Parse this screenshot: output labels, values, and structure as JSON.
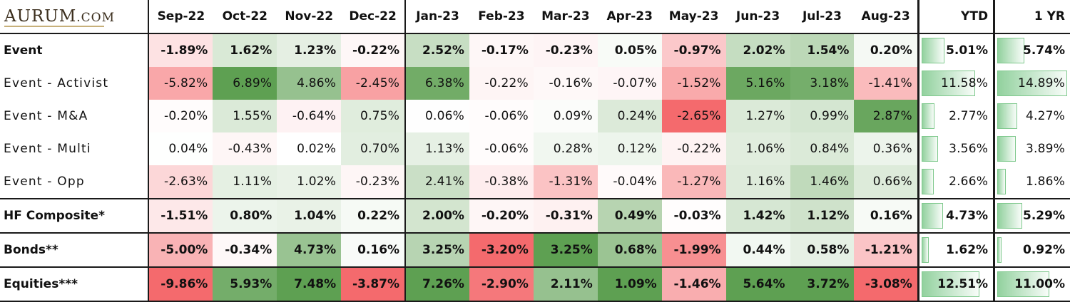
{
  "logo": {
    "text": "AURUM",
    "suffix": ".COM"
  },
  "headers": {
    "months": [
      "Sep-22",
      "Oct-22",
      "Nov-22",
      "Dec-22",
      "Jan-23",
      "Feb-23",
      "Mar-23",
      "Apr-23",
      "May-23",
      "Jun-23",
      "Jul-23",
      "Aug-23"
    ],
    "ytd": "YTD",
    "one_year": "1 YR"
  },
  "bar_max": 15,
  "colors": {
    "green_max": "#5ea052",
    "white": "#ffffff",
    "red_max": "#f46a6d",
    "bar": "#7fc98d"
  },
  "rows": [
    {
      "label": "Event",
      "bold": true,
      "sepTop": false,
      "values": [
        "-1.89%",
        "1.62%",
        "1.23%",
        "-0.22%",
        "2.52%",
        "-0.17%",
        "-0.23%",
        "0.05%",
        "-0.97%",
        "2.02%",
        "1.54%",
        "0.20%"
      ],
      "ytd": "5.01%",
      "one_year": "5.74%"
    },
    {
      "label": "Event - Activist",
      "bold": false,
      "sepTop": false,
      "values": [
        "-5.82%",
        "6.89%",
        "4.86%",
        "-2.45%",
        "6.38%",
        "-0.22%",
        "-0.16%",
        "-0.07%",
        "-1.52%",
        "5.16%",
        "3.18%",
        "-1.41%"
      ],
      "ytd": "11.58%",
      "one_year": "14.89%"
    },
    {
      "label": "Event - M&A",
      "bold": false,
      "sepTop": false,
      "values": [
        "-0.20%",
        "1.55%",
        "-0.64%",
        "0.75%",
        "0.06%",
        "-0.06%",
        "0.09%",
        "0.24%",
        "-2.65%",
        "1.27%",
        "0.99%",
        "2.87%"
      ],
      "ytd": "2.77%",
      "one_year": "4.27%"
    },
    {
      "label": "Event - Multi",
      "bold": false,
      "sepTop": false,
      "values": [
        "0.04%",
        "-0.43%",
        "0.02%",
        "0.70%",
        "1.13%",
        "-0.06%",
        "0.28%",
        "0.12%",
        "-0.22%",
        "1.06%",
        "0.84%",
        "0.36%"
      ],
      "ytd": "3.56%",
      "one_year": "3.89%"
    },
    {
      "label": "Event - Opp",
      "bold": false,
      "sepTop": false,
      "values": [
        "-2.63%",
        "1.11%",
        "1.02%",
        "-0.23%",
        "2.41%",
        "-0.38%",
        "-1.31%",
        "-0.04%",
        "-1.27%",
        "1.16%",
        "1.46%",
        "0.66%"
      ],
      "ytd": "2.66%",
      "one_year": "1.86%"
    },
    {
      "label": "HF Composite*",
      "bold": true,
      "sepTop": true,
      "values": [
        "-1.51%",
        "0.80%",
        "1.04%",
        "0.22%",
        "2.00%",
        "-0.20%",
        "-0.31%",
        "0.49%",
        "-0.03%",
        "1.42%",
        "1.12%",
        "0.16%"
      ],
      "ytd": "4.73%",
      "one_year": "5.29%"
    },
    {
      "label": "Bonds**",
      "bold": true,
      "sepTop": true,
      "values": [
        "-5.00%",
        "-0.34%",
        "4.73%",
        "0.16%",
        "3.25%",
        "-3.20%",
        "3.25%",
        "0.68%",
        "-1.99%",
        "0.44%",
        "0.58%",
        "-1.21%"
      ],
      "ytd": "1.62%",
      "one_year": "0.92%"
    },
    {
      "label": "Equities***",
      "bold": true,
      "sepTop": true,
      "values": [
        "-9.86%",
        "5.93%",
        "7.48%",
        "-3.87%",
        "7.26%",
        "-2.90%",
        "2.11%",
        "1.09%",
        "-1.46%",
        "5.64%",
        "3.72%",
        "-3.08%"
      ],
      "ytd": "12.51%",
      "one_year": "11.00%"
    }
  ]
}
